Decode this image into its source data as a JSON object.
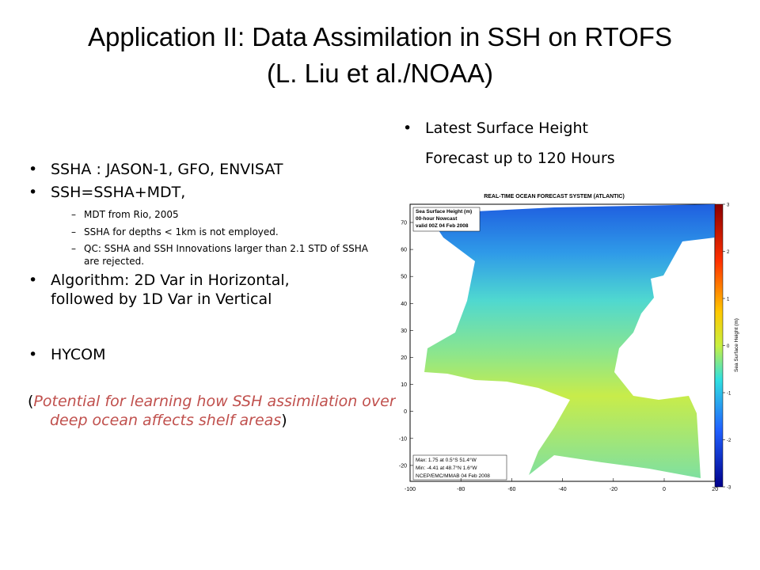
{
  "title": [
    "Application II: Data Assimilation in SSH on RTOFS",
    "(L. Liu et al./NOAA)"
  ],
  "left": {
    "bullets": [
      {
        "text": "SSHA :  JASON-1, GFO, ENVISAT"
      },
      {
        "text": "SSH=SSHA+MDT,",
        "sub": [
          "MDT from Rio, 2005",
          "SSHA for depths < 1km is not employed.",
          "QC:  SSHA and SSH Innovations larger than 2.1 STD of SSHA are rejected."
        ]
      },
      {
        "text": "Algorithm: 2D Var in Horizontal, followed by 1D Var in Vertical"
      },
      {
        "text": "HYCOM"
      }
    ],
    "note": {
      "open": "(",
      "text": "Potential for learning how SSH assimilation over deep ocean affects shelf areas",
      "close": ")"
    }
  },
  "right": {
    "bullet": [
      "Latest Surface Height",
      "Forecast up to 120 Hours"
    ]
  },
  "map": {
    "title": "REAL-TIME OCEAN FORECAST SYSTEM (ATLANTIC)",
    "legend": [
      "Sea Surface Height (m)",
      "00-hour Nowcast",
      "valid 00Z 04 Feb 2008"
    ],
    "stats": [
      "Max: 1.75 at 0.5°S 51.4°W",
      "Min: -4.41 at 48.7°N 1.6°W",
      "NCEP/EMC/MMAB 04 Feb 2008"
    ],
    "lat_ticks": [
      70,
      60,
      50,
      40,
      30,
      20,
      10,
      0,
      -10,
      -20
    ],
    "lon_ticks": [
      -100,
      -80,
      -60,
      -40,
      -20,
      0,
      20
    ],
    "colorbar_label": "Sea Surface Height (m)",
    "colorbar_ticks": [
      3,
      2,
      1,
      0,
      -1,
      -2,
      -3
    ]
  }
}
